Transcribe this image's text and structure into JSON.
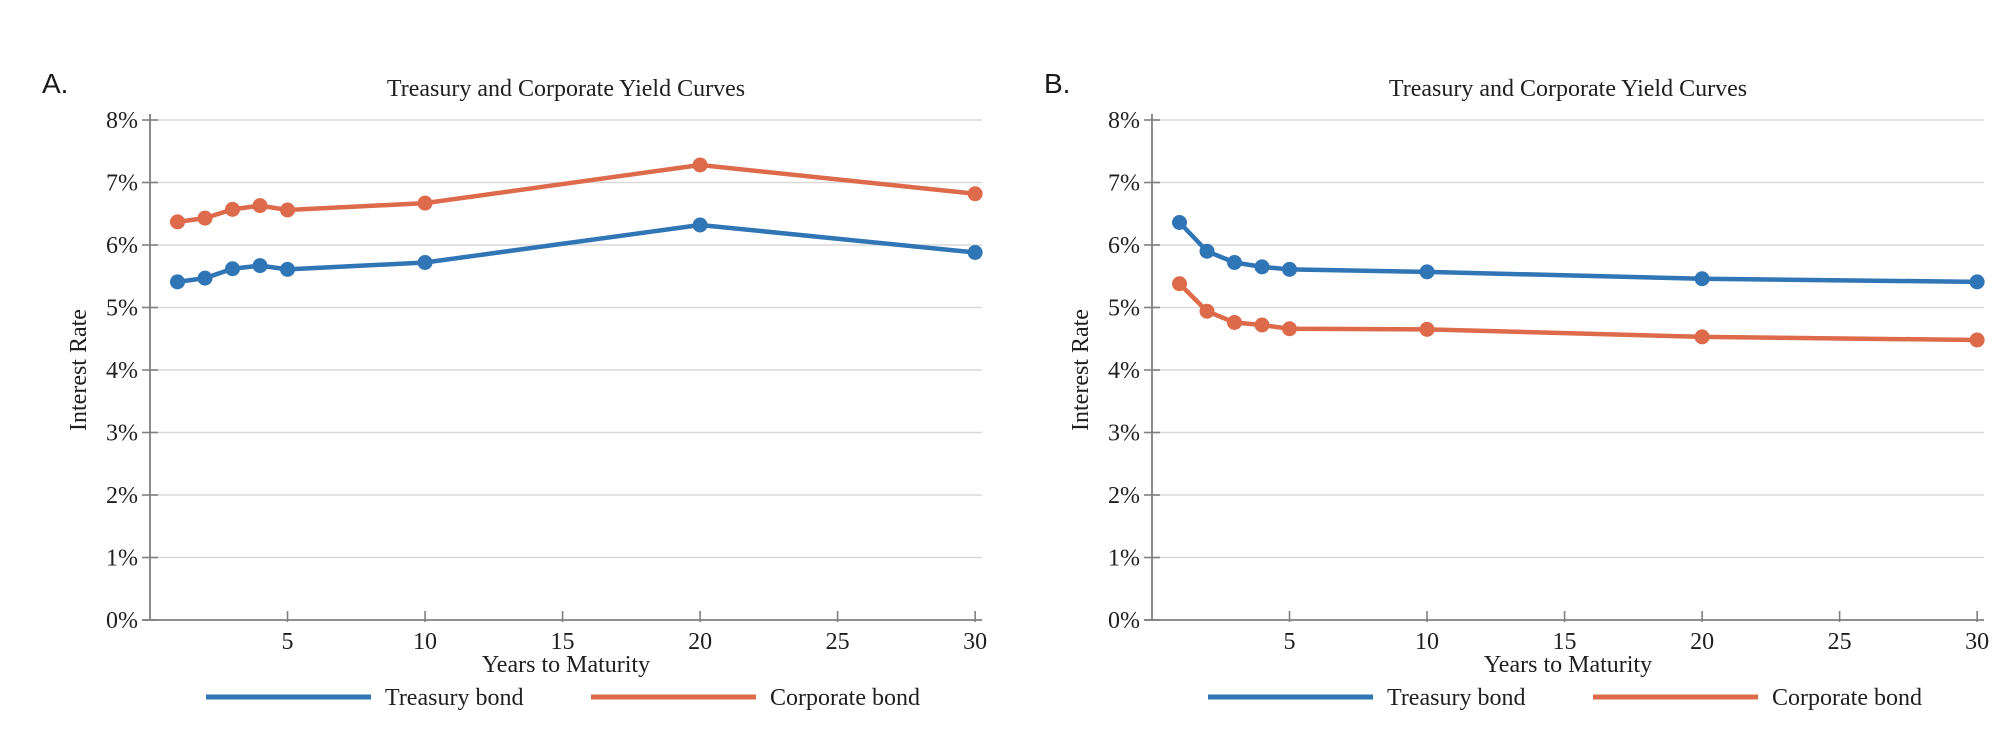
{
  "page": {
    "background": "#ffffff"
  },
  "colors": {
    "treasury": "#3075b5",
    "corporate": "#dd6a4a",
    "gridline": "#d9d9d9",
    "axis": "#808080",
    "text": "#1f1f1f"
  },
  "panels": [
    {
      "label": "A."
    },
    {
      "label": "B."
    }
  ],
  "chart_data": [
    {
      "type": "line",
      "title": "Treasury and Corporate Yield Curves",
      "xlabel": "Years to Maturity",
      "ylabel": "Interest Rate",
      "x": [
        1,
        2,
        3,
        4,
        5,
        10,
        20,
        30
      ],
      "series": [
        {
          "name": "Treasury bond",
          "color": "#3075b5",
          "values": [
            5.41,
            5.47,
            5.62,
            5.67,
            5.61,
            5.72,
            6.32,
            5.88
          ]
        },
        {
          "name": "Corporate bond",
          "color": "#dd6a4a",
          "values": [
            6.37,
            6.43,
            6.57,
            6.63,
            6.56,
            6.67,
            7.28,
            6.82
          ]
        }
      ],
      "xlim": [
        0,
        30.25
      ],
      "ylim": [
        0,
        8
      ],
      "xticks": [
        5,
        10,
        15,
        20,
        25,
        30
      ],
      "yticks": [
        "0%",
        "1%",
        "2%",
        "3%",
        "4%",
        "5%",
        "6%",
        "7%",
        "8%"
      ],
      "grid": true,
      "legend_position": "bottom"
    },
    {
      "type": "line",
      "title": "Treasury and Corporate Yield Curves",
      "xlabel": "Years to Maturity",
      "ylabel": "Interest Rate",
      "x": [
        1,
        2,
        3,
        4,
        5,
        10,
        20,
        30
      ],
      "series": [
        {
          "name": "Treasury bond",
          "color": "#3075b5",
          "values": [
            6.36,
            5.9,
            5.72,
            5.65,
            5.61,
            5.57,
            5.46,
            5.41
          ]
        },
        {
          "name": "Corporate bond",
          "color": "#dd6a4a",
          "values": [
            5.38,
            4.94,
            4.76,
            4.72,
            4.66,
            4.65,
            4.53,
            4.48
          ]
        }
      ],
      "xlim": [
        0,
        30.25
      ],
      "ylim": [
        0,
        8
      ],
      "xticks": [
        5,
        10,
        15,
        20,
        25,
        30
      ],
      "yticks": [
        "0%",
        "1%",
        "2%",
        "3%",
        "4%",
        "5%",
        "6%",
        "7%",
        "8%"
      ],
      "grid": true,
      "legend_position": "bottom"
    }
  ]
}
